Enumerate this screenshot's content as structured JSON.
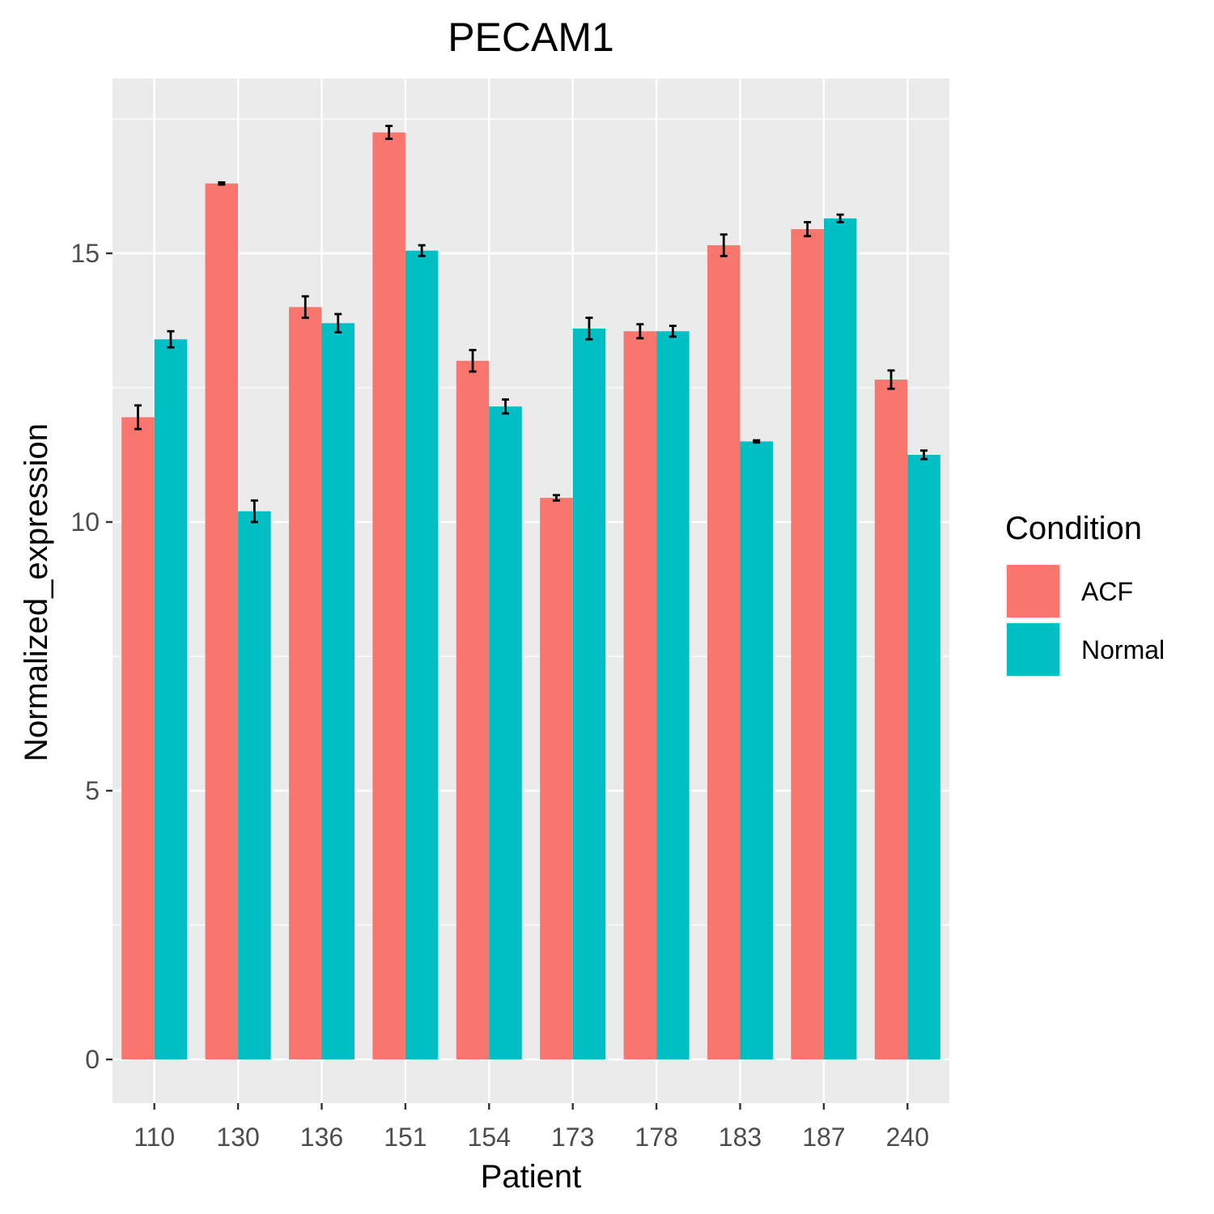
{
  "chart_data": {
    "type": "bar",
    "title": "PECAM1",
    "xlabel": "Patient",
    "ylabel": "Normalized_expression",
    "categories": [
      "110",
      "130",
      "136",
      "151",
      "154",
      "173",
      "178",
      "183",
      "187",
      "240"
    ],
    "series": [
      {
        "name": "ACF",
        "color": "#F8766D",
        "values": [
          11.95,
          16.3,
          14.0,
          17.25,
          13.0,
          10.45,
          13.55,
          15.15,
          15.45,
          12.65
        ],
        "errors": [
          0.22,
          0.02,
          0.2,
          0.12,
          0.2,
          0.05,
          0.13,
          0.2,
          0.13,
          0.17
        ]
      },
      {
        "name": "Normal",
        "color": "#00BFC4",
        "values": [
          13.4,
          10.2,
          13.7,
          15.05,
          12.15,
          13.6,
          13.55,
          11.5,
          15.65,
          11.25
        ],
        "errors": [
          0.15,
          0.2,
          0.17,
          0.1,
          0.13,
          0.2,
          0.1,
          0.02,
          0.07,
          0.08
        ]
      }
    ],
    "yticks": [
      0,
      5,
      10,
      15
    ],
    "ylim": [
      -0.8,
      17.9
    ],
    "grid": true,
    "legend": {
      "title": "Condition",
      "position": "right"
    }
  }
}
